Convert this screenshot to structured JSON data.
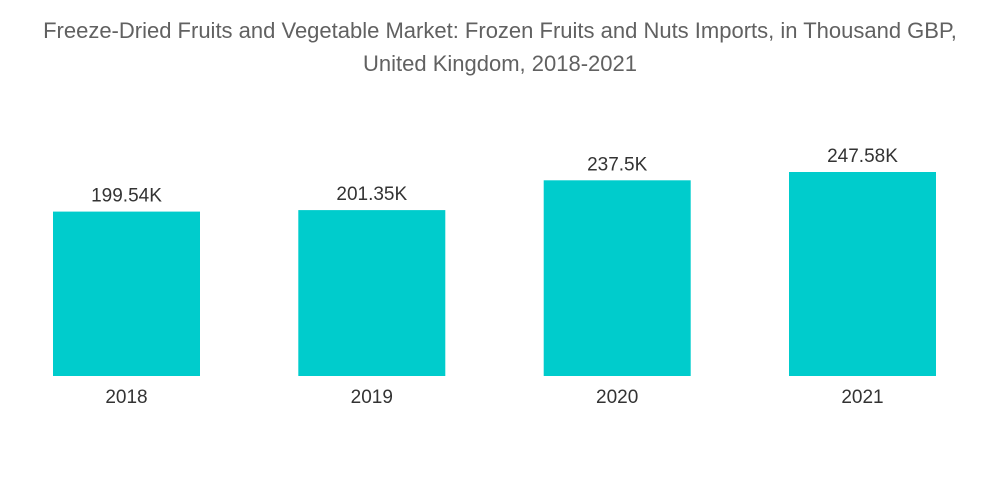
{
  "chart_data": {
    "type": "bar",
    "title_line1": "Freeze-Dried Fruits and Vegetable Market: Frozen Fruits and Nuts Imports, in Thousand GBP,",
    "title_line2": "United Kingdom, 2018-2021",
    "categories": [
      "2018",
      "2019",
      "2020",
      "2021"
    ],
    "values": [
      199.54,
      201.35,
      237.5,
      247.58
    ],
    "value_labels": [
      "199.54K",
      "201.35K",
      "237.5K",
      "247.58K"
    ],
    "xlabel": "",
    "ylabel": "",
    "ylim": [
      0,
      247.58
    ],
    "grid": false,
    "legend": "none",
    "bar_color": "#00CCCC"
  }
}
